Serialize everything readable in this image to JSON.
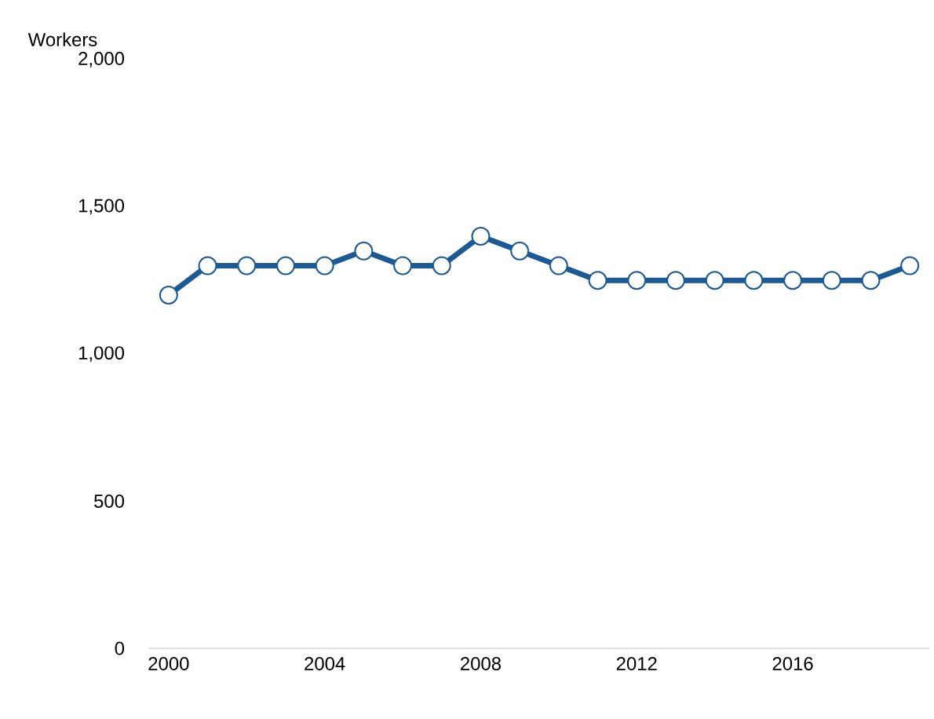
{
  "chart_data": {
    "type": "line",
    "ylabel": "Workers",
    "x": [
      2000,
      2001,
      2002,
      2003,
      2004,
      2005,
      2006,
      2007,
      2008,
      2009,
      2010,
      2011,
      2012,
      2013,
      2014,
      2015,
      2016,
      2017,
      2018,
      2019
    ],
    "values": [
      1200,
      1300,
      1300,
      1300,
      1300,
      1350,
      1300,
      1300,
      1400,
      1350,
      1300,
      1250,
      1250,
      1250,
      1250,
      1250,
      1250,
      1250,
      1250,
      1300
    ],
    "color": "#1c5a96",
    "marker": "circle",
    "xlim": [
      1999.5,
      2019.5
    ],
    "xticks": [
      2000,
      2004,
      2008,
      2012,
      2016
    ],
    "ylim": [
      0,
      2000
    ],
    "yticks": [
      0,
      500,
      {
        "value": 1000,
        "label": "1,000"
      },
      {
        "value": 1500,
        "label": "1,500"
      },
      {
        "value": 2000,
        "label": "2,000"
      }
    ]
  }
}
